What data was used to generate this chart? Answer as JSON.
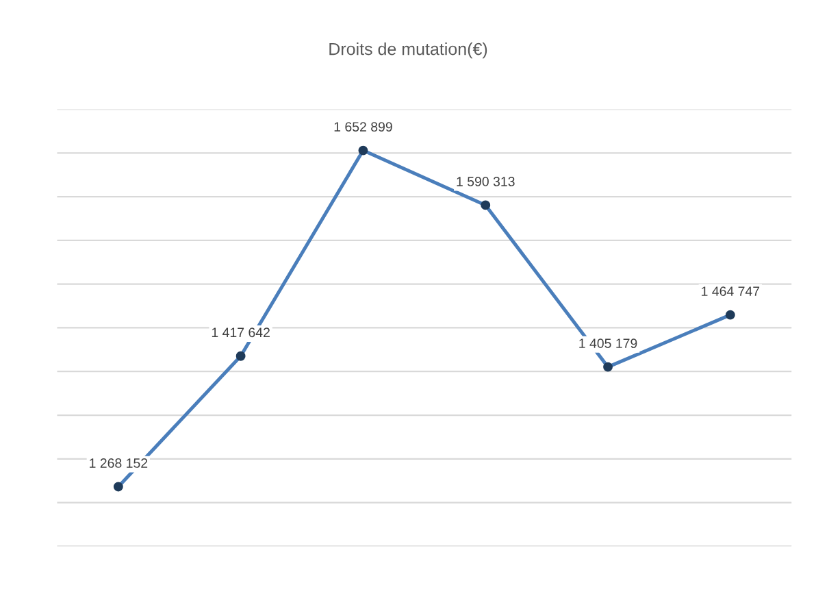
{
  "chart_data": {
    "type": "line",
    "title": "Droits de mutation(€)",
    "categories": [
      null,
      null,
      null,
      null,
      null,
      null
    ],
    "series": [
      {
        "color": "#4a7ebb",
        "values": [
          1268152,
          1417642,
          1652899,
          1590313,
          1405179,
          1464747
        ]
      }
    ],
    "data_labels": true,
    "grid": "y",
    "marker": "circle",
    "line_style": "solid"
  }
}
